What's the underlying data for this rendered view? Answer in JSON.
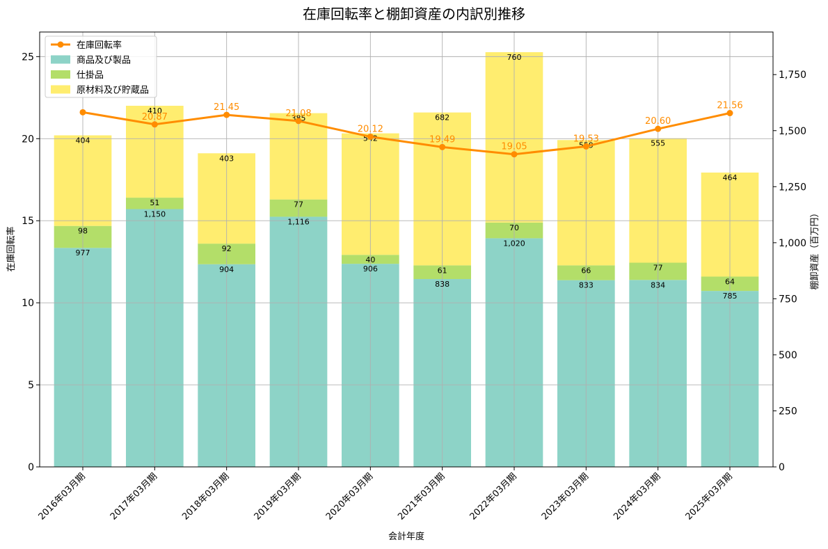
{
  "chart_data": {
    "type": "bar",
    "title": "在庫回転率と棚卸資産の内訳別推移",
    "xlabel": "会計年度",
    "ylabel_left": "在庫回転率",
    "ylabel_right": "棚卸資産（百万円）",
    "ylim_left": [
      0,
      26.5
    ],
    "ylim_right": [
      0,
      1940
    ],
    "yticks_left": [
      0,
      5,
      10,
      15,
      20,
      25
    ],
    "yticks_right": [
      0,
      250,
      500,
      750,
      1000,
      1250,
      1500,
      1750
    ],
    "yticks_right_labels": [
      "0",
      "250",
      "500",
      "750",
      "1,000",
      "1,250",
      "1,500",
      "1,750"
    ],
    "grid": true,
    "legend_position": "top-left",
    "categories": [
      "2016年03月期",
      "2017年03月期",
      "2018年03月期",
      "2019年03月期",
      "2020年03月期",
      "2021年03月期",
      "2022年03月期",
      "2023年03月期",
      "2024年03月期",
      "2025年03月期"
    ],
    "series": [
      {
        "name": "商品及び製品",
        "kind": "bar",
        "axis": "right",
        "color": "#8dd3c7",
        "values": [
          977,
          1150,
          904,
          1116,
          906,
          838,
          1020,
          833,
          834,
          785
        ],
        "labels": [
          "977",
          "1,150",
          "904",
          "1,116",
          "906",
          "838",
          "1,020",
          "833",
          "834",
          "785"
        ]
      },
      {
        "name": "仕掛品",
        "kind": "bar",
        "axis": "right",
        "color": "#b3de69",
        "values": [
          98,
          51,
          92,
          77,
          40,
          61,
          70,
          66,
          77,
          64
        ],
        "labels": [
          "98",
          "51",
          "92",
          "77",
          "40",
          "61",
          "70",
          "66",
          "77",
          "64"
        ]
      },
      {
        "name": "原材料及び貯蔵品",
        "kind": "bar",
        "axis": "right",
        "color": "#ffed6f",
        "values": [
          404,
          410,
          403,
          385,
          542,
          682,
          760,
          559,
          555,
          464
        ],
        "labels": [
          "404",
          "410",
          "403",
          "385",
          "542",
          "682",
          "760",
          "559",
          "555",
          "464"
        ]
      },
      {
        "name": "在庫回転率",
        "kind": "line",
        "axis": "left",
        "color": "#ff8c00",
        "values": [
          21.61,
          20.87,
          21.45,
          21.08,
          20.12,
          19.49,
          19.05,
          19.53,
          20.6,
          21.56
        ],
        "labels": [
          "",
          "20.87",
          "21.45",
          "21.08",
          "20.12",
          "19.49",
          "19.05",
          "19.53",
          "20.60",
          "21.56"
        ]
      }
    ]
  }
}
